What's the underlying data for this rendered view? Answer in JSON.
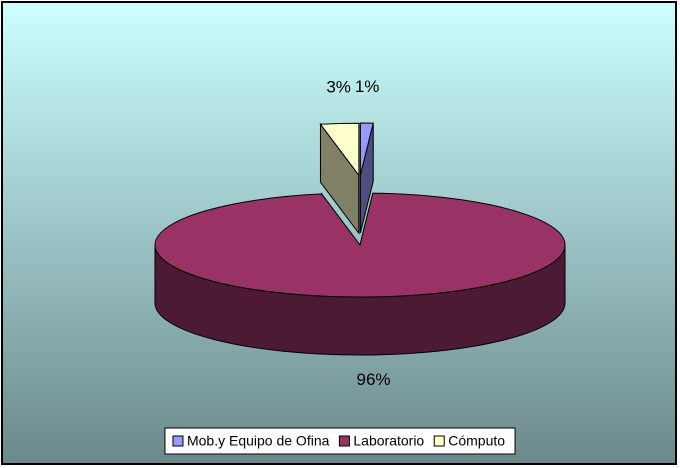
{
  "chart_data": {
    "type": "pie",
    "three_d": true,
    "categories": [
      "Mob.y Equipo de Ofina",
      "Laboratorio",
      "Cómputo"
    ],
    "values": [
      1,
      96,
      3
    ],
    "value_labels": [
      "1%",
      "96%",
      "3%"
    ],
    "colors": [
      "#9999ff",
      "#993366",
      "#ffffcc"
    ],
    "legend": "bottom"
  }
}
